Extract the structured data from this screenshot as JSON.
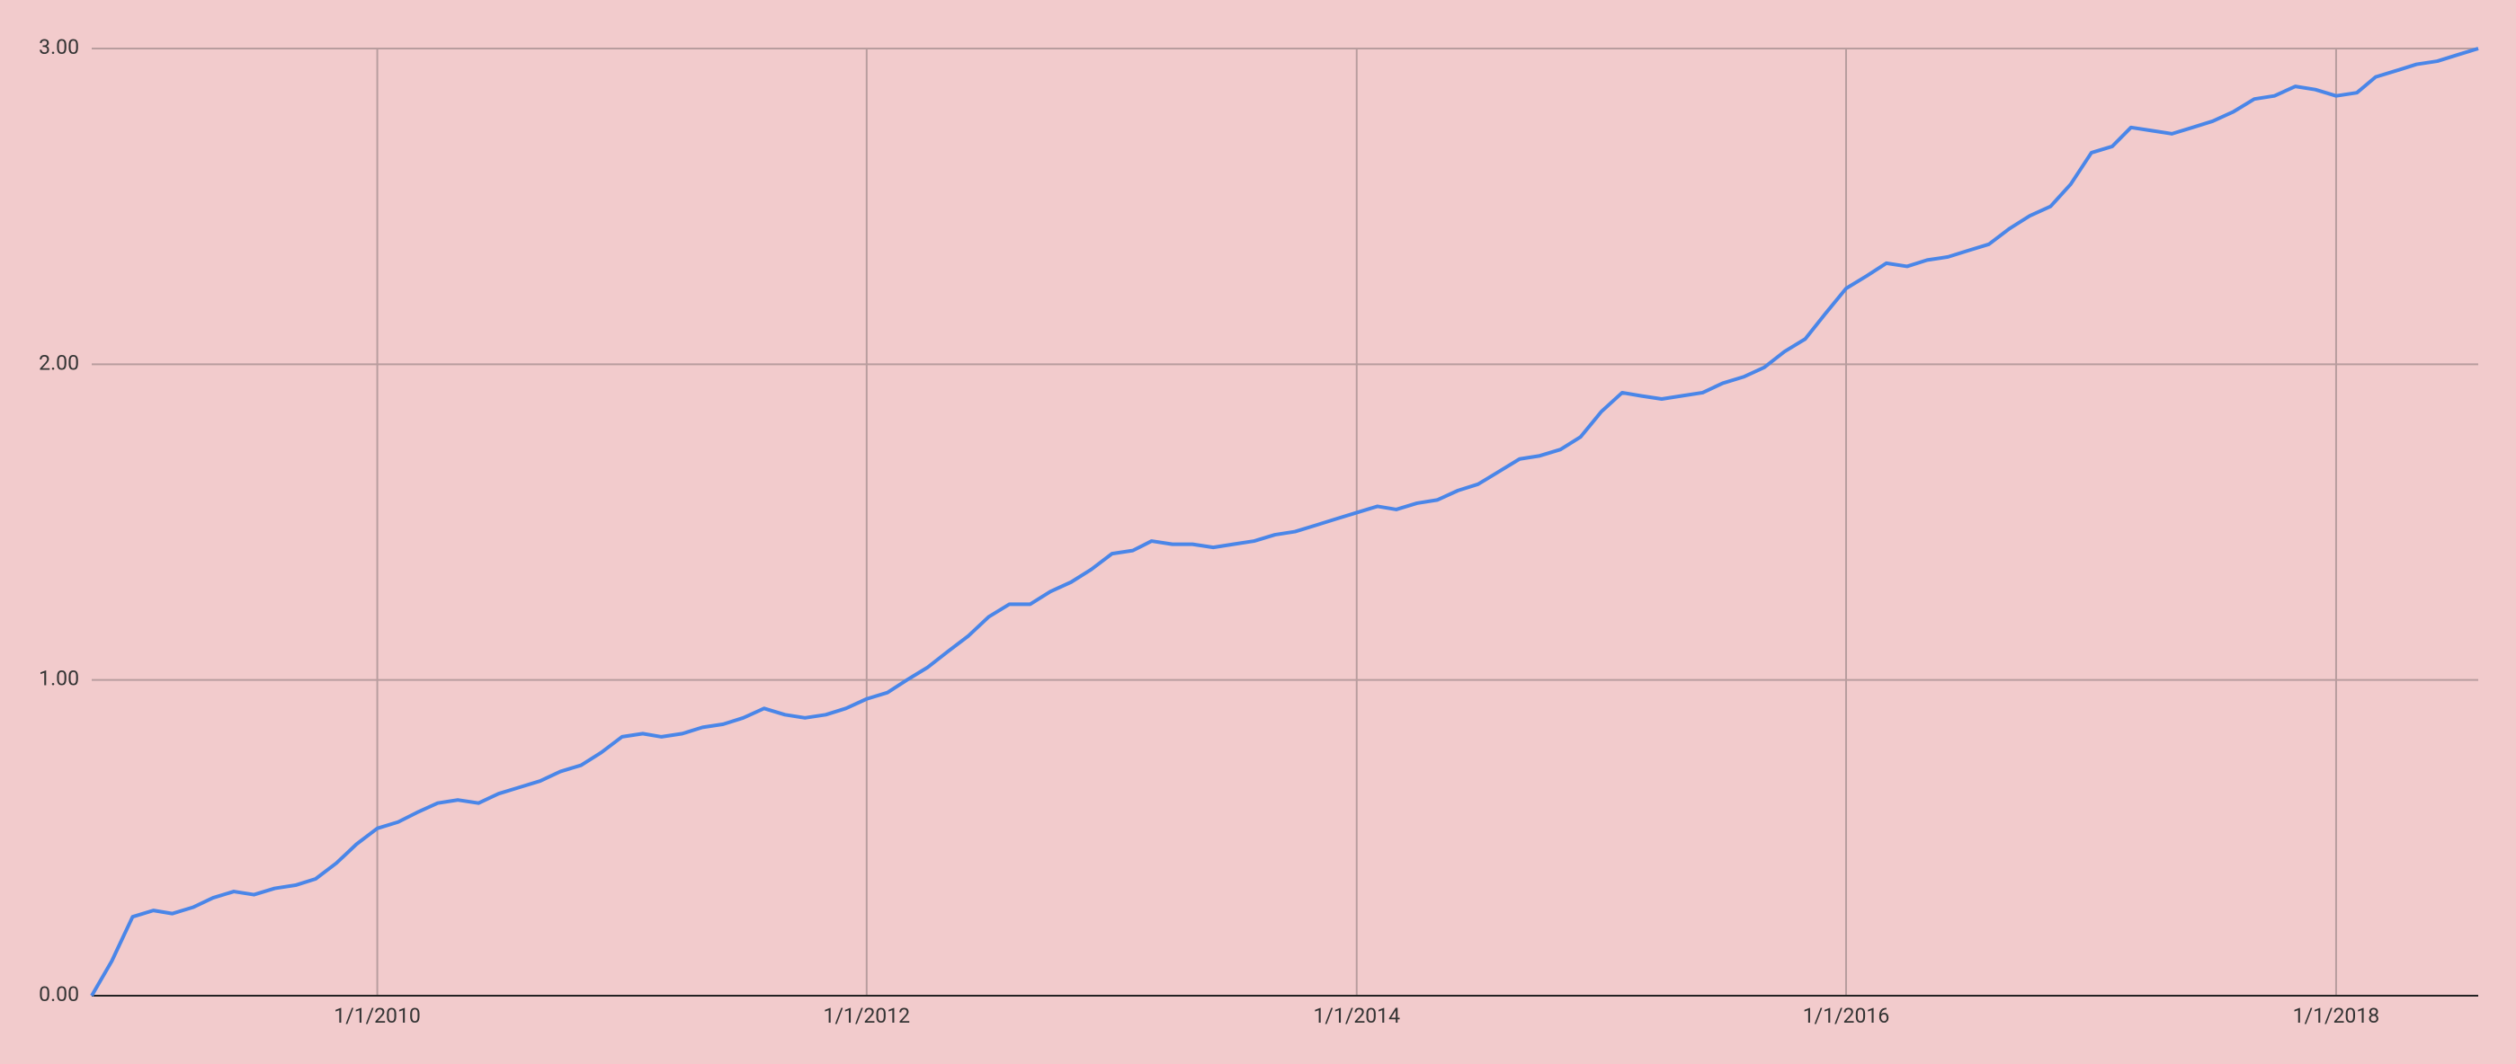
{
  "chart_data": {
    "type": "line",
    "x": [
      "2008-11-01",
      "2008-12-01",
      "2009-01-01",
      "2009-02-01",
      "2009-03-01",
      "2009-04-01",
      "2009-05-01",
      "2009-06-01",
      "2009-07-01",
      "2009-08-01",
      "2009-09-01",
      "2009-10-01",
      "2009-11-01",
      "2009-12-01",
      "2010-01-01",
      "2010-02-01",
      "2010-03-01",
      "2010-04-01",
      "2010-05-01",
      "2010-06-01",
      "2010-07-01",
      "2010-08-01",
      "2010-09-01",
      "2010-10-01",
      "2010-11-01",
      "2010-12-01",
      "2011-01-01",
      "2011-02-01",
      "2011-03-01",
      "2011-04-01",
      "2011-05-01",
      "2011-06-01",
      "2011-07-01",
      "2011-08-01",
      "2011-09-01",
      "2011-10-01",
      "2011-11-01",
      "2011-12-01",
      "2012-01-01",
      "2012-02-01",
      "2012-03-01",
      "2012-04-01",
      "2012-05-01",
      "2012-06-01",
      "2012-07-01",
      "2012-08-01",
      "2012-09-01",
      "2012-10-01",
      "2012-11-01",
      "2012-12-01",
      "2013-01-01",
      "2013-02-01",
      "2013-03-01",
      "2013-04-01",
      "2013-05-01",
      "2013-06-01",
      "2013-07-01",
      "2013-08-01",
      "2013-09-01",
      "2013-10-01",
      "2013-11-01",
      "2013-12-01",
      "2014-01-01",
      "2014-02-01",
      "2014-03-01",
      "2014-04-01",
      "2014-05-01",
      "2014-06-01",
      "2014-07-01",
      "2014-08-01",
      "2014-09-01",
      "2014-10-01",
      "2014-11-01",
      "2014-12-01",
      "2015-01-01",
      "2015-02-01",
      "2015-03-01",
      "2015-04-01",
      "2015-05-01",
      "2015-06-01",
      "2015-07-01",
      "2015-08-01",
      "2015-09-01",
      "2015-10-01",
      "2015-11-01",
      "2015-12-01",
      "2016-01-01",
      "2016-02-01",
      "2016-03-01",
      "2016-04-01",
      "2016-05-01",
      "2016-06-01",
      "2016-07-01",
      "2016-08-01",
      "2016-09-01",
      "2016-10-01",
      "2016-11-01",
      "2016-12-01",
      "2017-01-01",
      "2017-02-01",
      "2017-03-01",
      "2017-04-01",
      "2017-05-01",
      "2017-06-01",
      "2017-07-01",
      "2017-08-01",
      "2017-09-01",
      "2017-10-01",
      "2017-11-01",
      "2017-12-01",
      "2018-01-01",
      "2018-02-01",
      "2018-03-01",
      "2018-04-01",
      "2018-05-01",
      "2018-06-01",
      "2018-07-01",
      "2018-08-01"
    ],
    "series": [
      {
        "color": "#4a86e8",
        "values": [
          0.0,
          0.11,
          0.25,
          0.27,
          0.26,
          0.28,
          0.31,
          0.33,
          0.32,
          0.34,
          0.35,
          0.37,
          0.42,
          0.48,
          0.53,
          0.55,
          0.58,
          0.61,
          0.62,
          0.61,
          0.64,
          0.66,
          0.68,
          0.71,
          0.73,
          0.77,
          0.82,
          0.83,
          0.82,
          0.83,
          0.85,
          0.86,
          0.88,
          0.91,
          0.89,
          0.88,
          0.89,
          0.91,
          0.94,
          0.96,
          1.0,
          1.04,
          1.09,
          1.14,
          1.2,
          1.24,
          1.24,
          1.28,
          1.31,
          1.35,
          1.4,
          1.41,
          1.44,
          1.43,
          1.43,
          1.42,
          1.43,
          1.44,
          1.46,
          1.47,
          1.49,
          1.51,
          1.53,
          1.55,
          1.54,
          1.56,
          1.57,
          1.6,
          1.62,
          1.66,
          1.7,
          1.71,
          1.73,
          1.77,
          1.85,
          1.91,
          1.9,
          1.89,
          1.9,
          1.91,
          1.94,
          1.96,
          1.99,
          2.04,
          2.08,
          2.16,
          2.24,
          2.28,
          2.32,
          2.31,
          2.33,
          2.34,
          2.36,
          2.38,
          2.43,
          2.47,
          2.5,
          2.57,
          2.67,
          2.69,
          2.75,
          2.74,
          2.73,
          2.75,
          2.77,
          2.8,
          2.84,
          2.85,
          2.88,
          2.87,
          2.85,
          2.86,
          2.91,
          2.93,
          2.95,
          2.96,
          2.98,
          3.0
        ]
      }
    ],
    "xlim": [
      "2008-11-01",
      "2018-08-01"
    ],
    "xticks": [
      {
        "value": "2010-01-01",
        "label": "1/1/2010"
      },
      {
        "value": "2012-01-01",
        "label": "1/1/2012"
      },
      {
        "value": "2014-01-01",
        "label": "1/1/2014"
      },
      {
        "value": "2016-01-01",
        "label": "1/1/2016"
      },
      {
        "value": "2018-01-01",
        "label": "1/1/2018"
      }
    ],
    "ylim": [
      0,
      3
    ],
    "yticks": [
      {
        "value": 0,
        "label": "0.00"
      },
      {
        "value": 1,
        "label": "1.00"
      },
      {
        "value": 2,
        "label": "2.00"
      },
      {
        "value": 3,
        "label": "3.00"
      }
    ],
    "grid": true
  }
}
